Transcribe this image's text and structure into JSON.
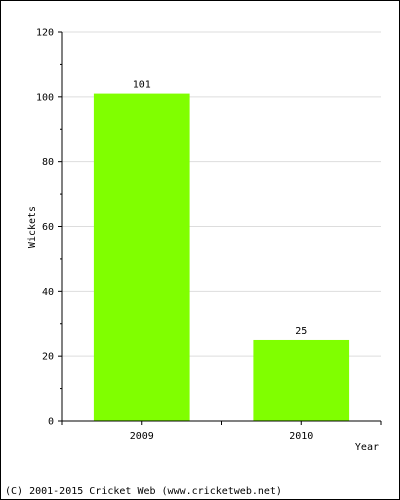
{
  "chart_data": {
    "type": "bar",
    "categories": [
      "2009",
      "2010"
    ],
    "values": [
      101,
      25
    ],
    "data_labels": [
      "101",
      "25"
    ],
    "title": "",
    "xlabel": "Year",
    "ylabel": "Wickets",
    "ylim": [
      0,
      120
    ],
    "yticks": [
      0,
      20,
      40,
      60,
      80,
      100,
      120
    ],
    "grid": true,
    "bar_color": "#80ff00"
  },
  "footer": {
    "copyright": "(C) 2001-2015 Cricket Web (www.cricketweb.net)"
  }
}
